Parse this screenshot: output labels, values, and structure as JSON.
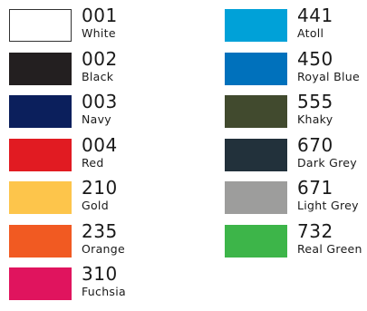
{
  "swatches": {
    "left": [
      {
        "code": "001",
        "name": "White",
        "color": "#ffffff",
        "outlined": true
      },
      {
        "code": "002",
        "name": "Black",
        "color": "#231f20"
      },
      {
        "code": "003",
        "name": "Navy",
        "color": "#0b1f5c"
      },
      {
        "code": "004",
        "name": "Red",
        "color": "#e11b22"
      },
      {
        "code": "210",
        "name": "Gold",
        "color": "#fdc54b"
      },
      {
        "code": "235",
        "name": "Orange",
        "color": "#f15a22"
      },
      {
        "code": "310",
        "name": "Fuchsia",
        "color": "#e0145e"
      }
    ],
    "right": [
      {
        "code": "441",
        "name": "Atoll",
        "color": "#00a1d8"
      },
      {
        "code": "450",
        "name": "Royal Blue",
        "color": "#0071bc"
      },
      {
        "code": "555",
        "name": "Khaky",
        "color": "#414a2e"
      },
      {
        "code": "670",
        "name": "Dark Grey",
        "color": "#22313b"
      },
      {
        "code": "671",
        "name": "Light Grey",
        "color": "#9d9d9c"
      },
      {
        "code": "732",
        "name": "Real Green",
        "color": "#3db549"
      }
    ]
  }
}
